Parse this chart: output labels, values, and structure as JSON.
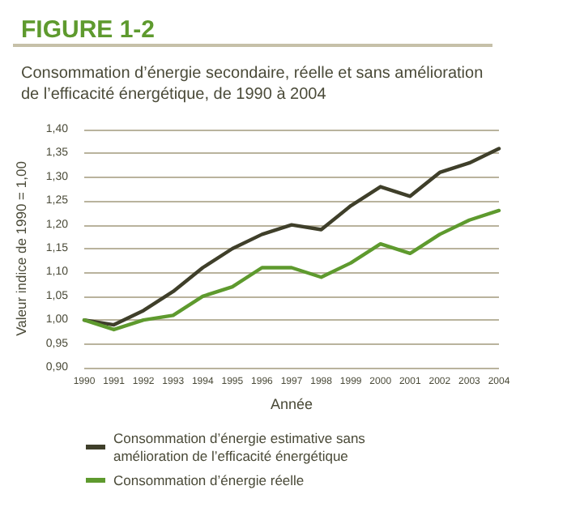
{
  "chart_data": {
    "type": "line",
    "title": "FIGURE 1-2",
    "subtitle": "Consommation d’énergie secondaire, réelle et sans amélioration de l’efficacité énergétique, de 1990 à 2004",
    "xlabel": "Année",
    "ylabel": "Valeur indice de 1990 = 1,00",
    "categories": [
      "1990",
      "1991",
      "1992",
      "1993",
      "1994",
      "1995",
      "1996",
      "1997",
      "1998",
      "1999",
      "2000",
      "2001",
      "2002",
      "2003",
      "2004"
    ],
    "series": [
      {
        "name": "Consommation d’énergie estimative sans amélioration de l’efficacité énergétique",
        "color": "#3f3f2a",
        "values": [
          1.0,
          0.99,
          1.02,
          1.06,
          1.11,
          1.15,
          1.18,
          1.2,
          1.19,
          1.24,
          1.28,
          1.26,
          1.31,
          1.33,
          1.36
        ]
      },
      {
        "name": "Consommation d’énergie réelle",
        "color": "#5e9a2e",
        "values": [
          1.0,
          0.98,
          1.0,
          1.01,
          1.05,
          1.07,
          1.11,
          1.11,
          1.09,
          1.12,
          1.16,
          1.14,
          1.18,
          1.21,
          1.23
        ]
      }
    ],
    "ylim": [
      0.9,
      1.4
    ],
    "yticks": [
      {
        "value": 0.9,
        "label": "0,90"
      },
      {
        "value": 0.95,
        "label": "0,95"
      },
      {
        "value": 1.0,
        "label": "1,00"
      },
      {
        "value": 1.05,
        "label": "1,05"
      },
      {
        "value": 1.1,
        "label": "1,10"
      },
      {
        "value": 1.15,
        "label": "1,15"
      },
      {
        "value": 1.2,
        "label": "1,20"
      },
      {
        "value": 1.25,
        "label": "1,25"
      },
      {
        "value": 1.3,
        "label": "1,30"
      },
      {
        "value": 1.35,
        "label": "1,35"
      },
      {
        "value": 1.4,
        "label": "1,40"
      }
    ],
    "grid": "y",
    "legend": "bottom",
    "marker": "none",
    "line_style": "solid"
  }
}
